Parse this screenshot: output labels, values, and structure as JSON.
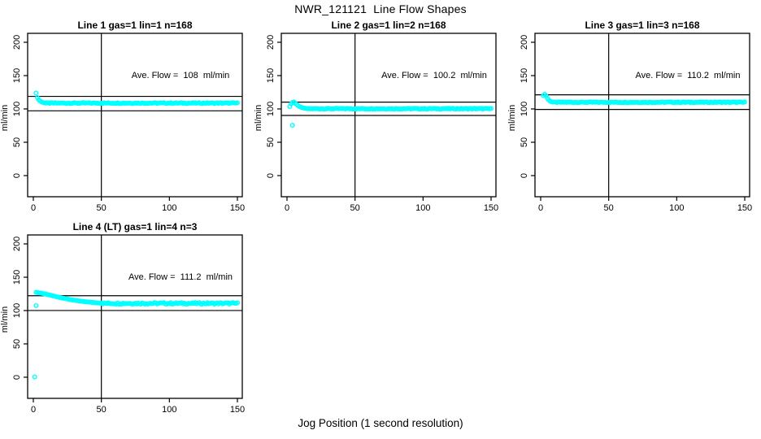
{
  "page": {
    "title": "NWR_121121  Line Flow Shapes",
    "x_axis_label": "Jog Position (1 second resolution)",
    "point_color": "#00FFFF",
    "axis_color": "#000000"
  },
  "chart_data": [
    {
      "type": "scatter",
      "title": "Line 1 gas=1 lin=1 n=168",
      "annotation": "Ave. Flow =  108  ml/min",
      "ave_flow": 108,
      "ylabel": "ml/min",
      "xlim": [
        0,
        150
      ],
      "ylim": [
        0,
        200
      ],
      "x_ticks": [
        0,
        50,
        100,
        150
      ],
      "y_ticks": [
        0,
        50,
        100,
        150,
        200
      ],
      "hlines": [
        118.8,
        97.2
      ],
      "vline_x": 50,
      "points": [
        [
          2,
          124
        ],
        [
          3,
          117
        ],
        [
          4,
          113.5
        ],
        [
          5,
          111.8
        ],
        [
          6,
          110.6
        ],
        [
          7,
          109.8
        ],
        [
          8,
          109.3
        ]
      ],
      "flat": {
        "from": 9,
        "to": 150,
        "y": 108.8,
        "noise": 0.7
      }
    },
    {
      "type": "scatter",
      "title": "Line 2 gas=1 lin=2 n=168",
      "annotation": "Ave. Flow =  100.2  ml/min",
      "ave_flow": 100.2,
      "ylabel": "ml/min",
      "xlim": [
        0,
        150
      ],
      "ylim": [
        0,
        200
      ],
      "x_ticks": [
        0,
        50,
        100,
        150
      ],
      "y_ticks": [
        0,
        50,
        100,
        150,
        200
      ],
      "hlines": [
        110.2,
        90.2
      ],
      "vline_x": 50,
      "points": [
        [
          2,
          103.5
        ],
        [
          3,
          107.5
        ],
        [
          4,
          109.8
        ],
        [
          5,
          110.3
        ],
        [
          6,
          108.8
        ],
        [
          7,
          106.8
        ],
        [
          8,
          105.2
        ],
        [
          9,
          103.8
        ],
        [
          10,
          102.8
        ],
        [
          11,
          102.1
        ],
        [
          12,
          101.5
        ],
        [
          13,
          101
        ],
        [
          14,
          100.7
        ],
        [
          4,
          75.5
        ]
      ],
      "flat": {
        "from": 15,
        "to": 150,
        "y": 100.3,
        "noise": 0.6
      }
    },
    {
      "type": "scatter",
      "title": "Line 3 gas=1 lin=3 n=168",
      "annotation": "Ave. Flow =  110.2  ml/min",
      "ave_flow": 110.2,
      "ylabel": "ml/min",
      "xlim": [
        0,
        150
      ],
      "ylim": [
        0,
        200
      ],
      "x_ticks": [
        0,
        50,
        100,
        150
      ],
      "y_ticks": [
        0,
        50,
        100,
        150,
        200
      ],
      "hlines": [
        121.2,
        99.2
      ],
      "vline_x": 50,
      "points": [
        [
          2,
          120
        ],
        [
          3,
          122
        ],
        [
          4,
          119.5
        ],
        [
          5,
          115.8
        ],
        [
          6,
          113.2
        ],
        [
          7,
          111.6
        ],
        [
          8,
          110.7
        ],
        [
          9,
          110.2
        ]
      ],
      "flat": {
        "from": 10,
        "to": 150,
        "y": 110,
        "noise": 0.6
      }
    },
    {
      "type": "scatter",
      "title": "Line 4 (LT) gas=1 lin=4 n=3",
      "annotation": "Ave. Flow =  111.2  ml/min",
      "ave_flow": 111.2,
      "ylabel": "ml/min",
      "xlim": [
        0,
        150
      ],
      "ylim": [
        0,
        200
      ],
      "x_ticks": [
        0,
        50,
        100,
        150
      ],
      "y_ticks": [
        0,
        50,
        100,
        150,
        200
      ],
      "hlines": [
        122.3,
        100.1
      ],
      "vline_x": 50,
      "points": [
        [
          1,
          0.5
        ],
        [
          2,
          107.5
        ],
        [
          2,
          127.3
        ],
        [
          3,
          127
        ],
        [
          4,
          126.7
        ],
        [
          5,
          126.4
        ],
        [
          6,
          126
        ],
        [
          7,
          125.6
        ],
        [
          8,
          125.2
        ],
        [
          9,
          124.8
        ],
        [
          10,
          124.3
        ],
        [
          11,
          123.8
        ],
        [
          12,
          123.3
        ],
        [
          13,
          122.8
        ],
        [
          14,
          122.3
        ],
        [
          15,
          121.8
        ],
        [
          16,
          121.3
        ],
        [
          17,
          120.8
        ],
        [
          18,
          120.3
        ],
        [
          19,
          119.8
        ],
        [
          20,
          119.3
        ],
        [
          21,
          118.9
        ],
        [
          22,
          118.5
        ],
        [
          23,
          118.1
        ],
        [
          24,
          117.7
        ],
        [
          25,
          117.3
        ],
        [
          26,
          116.9
        ],
        [
          27,
          116.5
        ],
        [
          28,
          116.1
        ],
        [
          29,
          115.8
        ],
        [
          30,
          115.5
        ],
        [
          31,
          115.2
        ],
        [
          32,
          114.9
        ],
        [
          33,
          114.6
        ],
        [
          34,
          114.3
        ],
        [
          35,
          114
        ],
        [
          36,
          113.8
        ],
        [
          37,
          113.5
        ],
        [
          38,
          113.3
        ],
        [
          39,
          113.1
        ],
        [
          40,
          112.9
        ],
        [
          41,
          112.7
        ],
        [
          42,
          112.5
        ],
        [
          43,
          112.3
        ],
        [
          44,
          112.1
        ],
        [
          45,
          111.9
        ],
        [
          46,
          111.8
        ],
        [
          47,
          111.6
        ],
        [
          48,
          111.5
        ],
        [
          49,
          111.3
        ],
        [
          50,
          111.2
        ]
      ],
      "flat": {
        "from": 51,
        "to": 150,
        "y": 110.8,
        "noise": 1.2
      }
    }
  ]
}
